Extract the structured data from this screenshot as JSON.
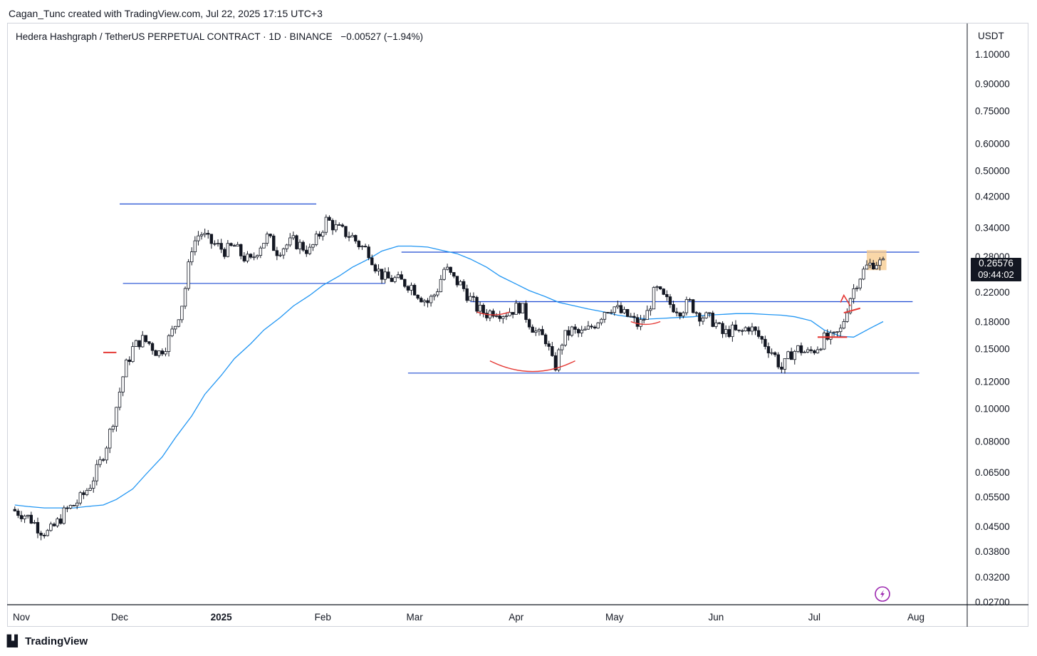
{
  "header": {
    "creator_line": "Cagan_Tunc created with TradingView.com, Jul 22, 2025 17:15 UTC+3",
    "symbol": "Hedera Hashgraph / TetherUS PERPETUAL CONTRACT · 1D · BINANCE",
    "change": "−0.00527 (−1.94%)",
    "currency": "USDT"
  },
  "last_price": {
    "price": "0.26576",
    "countdown": "09:44:02"
  },
  "footer": {
    "brand": "TradingView",
    "logo": "tradingview-logo-icon"
  },
  "colors": {
    "down": "#131722",
    "up": "#ffffff",
    "ma": "#2196f3",
    "levels": "#1e4bd2",
    "curves": "#e53935",
    "highlight": "#f7c98b",
    "flash": "#9c27b0"
  },
  "chart_data": {
    "type": "candlestick",
    "scale": "log",
    "ylim": [
      0.027,
      1.25
    ],
    "x_ticks": [
      "Nov",
      "Dec",
      "2025",
      "Feb",
      "Mar",
      "Apr",
      "May",
      "Jun",
      "Jul",
      "Aug"
    ],
    "y_ticks": [
      "1.10000",
      "0.90000",
      "0.75000",
      "0.60000",
      "0.50000",
      "0.42000",
      "0.34000",
      "0.28000",
      "0.22000",
      "0.18000",
      "0.15000",
      "0.12000",
      "0.10000",
      "0.08000",
      "0.06500",
      "0.05500",
      "0.04500",
      "0.03800",
      "0.03200",
      "0.02700"
    ],
    "date_range": [
      "2024-10-30",
      "2025-07-22"
    ],
    "ma_series": {
      "values": [
        0.052,
        0.0515,
        0.051,
        0.051,
        0.051,
        0.0515,
        0.052,
        0.054,
        0.058,
        0.064,
        0.072,
        0.082,
        0.095,
        0.11,
        0.125,
        0.14,
        0.155,
        0.17,
        0.185,
        0.2,
        0.215,
        0.23,
        0.245,
        0.26,
        0.275,
        0.29,
        0.3,
        0.3,
        0.298,
        0.292,
        0.285,
        0.275,
        0.26,
        0.245,
        0.232,
        0.222,
        0.213,
        0.205,
        0.2,
        0.196,
        0.192,
        0.188,
        0.185,
        0.183,
        0.184,
        0.185,
        0.186,
        0.188,
        0.189,
        0.19,
        0.19,
        0.189,
        0.188,
        0.186,
        0.181,
        0.17,
        0.163,
        0.162,
        0.172,
        0.18
      ]
    },
    "close_series": {
      "values": [
        0.05,
        0.049,
        0.047,
        0.044,
        0.043,
        0.046,
        0.05,
        0.052,
        0.055,
        0.06,
        0.068,
        0.08,
        0.1,
        0.13,
        0.15,
        0.16,
        0.155,
        0.145,
        0.155,
        0.175,
        0.21,
        0.3,
        0.33,
        0.31,
        0.3,
        0.29,
        0.3,
        0.28,
        0.27,
        0.3,
        0.32,
        0.29,
        0.3,
        0.31,
        0.3,
        0.29,
        0.32,
        0.36,
        0.34,
        0.33,
        0.32,
        0.3,
        0.29,
        0.255,
        0.24,
        0.24,
        0.235,
        0.23,
        0.215,
        0.205,
        0.22,
        0.26,
        0.24,
        0.23,
        0.21,
        0.195,
        0.19,
        0.195,
        0.19,
        0.195,
        0.2,
        0.18,
        0.165,
        0.16,
        0.13,
        0.16,
        0.17,
        0.165,
        0.17,
        0.18,
        0.195,
        0.2,
        0.19,
        0.185,
        0.175,
        0.19,
        0.225,
        0.21,
        0.2,
        0.195,
        0.205,
        0.19,
        0.185,
        0.18,
        0.165,
        0.17,
        0.165,
        0.175,
        0.165,
        0.155,
        0.145,
        0.13,
        0.145,
        0.15,
        0.145,
        0.15,
        0.16,
        0.16,
        0.17,
        0.21,
        0.24,
        0.26,
        0.27,
        0.266
      ]
    },
    "levels": [
      {
        "y": 0.399,
        "from": "2024-12-01",
        "to": "2025-01-30"
      },
      {
        "y": 0.233,
        "from": "2024-12-02",
        "to": "2025-02-20"
      },
      {
        "y": 0.288,
        "from": "2025-02-25",
        "to": "2025-08-02"
      },
      {
        "y": 0.206,
        "from": "2025-03-18",
        "to": "2025-07-31"
      },
      {
        "y": 0.127,
        "from": "2025-02-27",
        "to": "2025-08-02"
      }
    ],
    "highlight": {
      "from": "2025-07-17",
      "to": "2025-07-23",
      "y": [
        0.255,
        0.292
      ]
    }
  }
}
